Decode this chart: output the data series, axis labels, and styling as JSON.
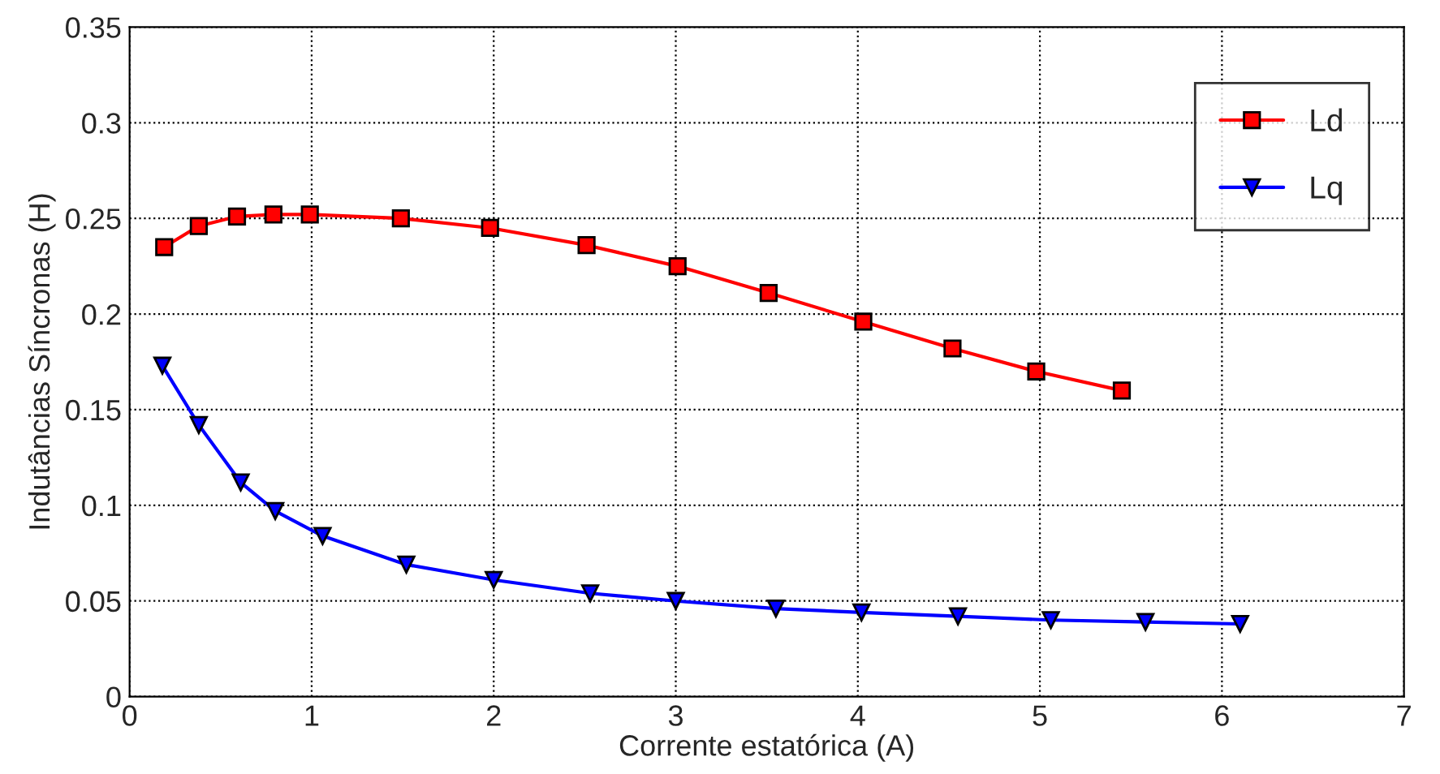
{
  "chart_data": {
    "type": "line",
    "xlabel": "Corrente estatórica (A)",
    "ylabel": "Indutâncias Síncronas (H)",
    "xlim": [
      0,
      7
    ],
    "xticks": [
      0,
      1,
      2,
      3,
      4,
      5,
      6,
      7
    ],
    "ylim": [
      0,
      0.35
    ],
    "yticks": [
      0,
      0.05,
      0.1,
      0.15,
      0.2,
      0.25,
      0.3,
      0.35
    ],
    "grid": true,
    "legend": "top right",
    "line_style": "solid",
    "series": [
      {
        "name": "Ld",
        "color": "#ff0000",
        "marker": "square",
        "x": [
          0.19,
          0.38,
          0.59,
          0.79,
          0.99,
          1.49,
          1.98,
          2.51,
          3.01,
          3.51,
          4.03,
          4.52,
          4.98,
          5.45
        ],
        "values": [
          0.235,
          0.246,
          0.251,
          0.252,
          0.252,
          0.25,
          0.245,
          0.236,
          0.225,
          0.211,
          0.196,
          0.182,
          0.17,
          0.16
        ]
      },
      {
        "name": "Lq",
        "color": "#0000ff",
        "marker": "triangle",
        "x": [
          0.18,
          0.38,
          0.61,
          0.8,
          1.06,
          1.52,
          2.0,
          2.53,
          3.0,
          3.55,
          4.02,
          4.55,
          5.06,
          5.58,
          6.1
        ],
        "values": [
          0.173,
          0.142,
          0.112,
          0.097,
          0.084,
          0.069,
          0.061,
          0.054,
          0.05,
          0.046,
          0.044,
          0.042,
          0.04,
          0.039,
          0.038
        ]
      }
    ]
  }
}
